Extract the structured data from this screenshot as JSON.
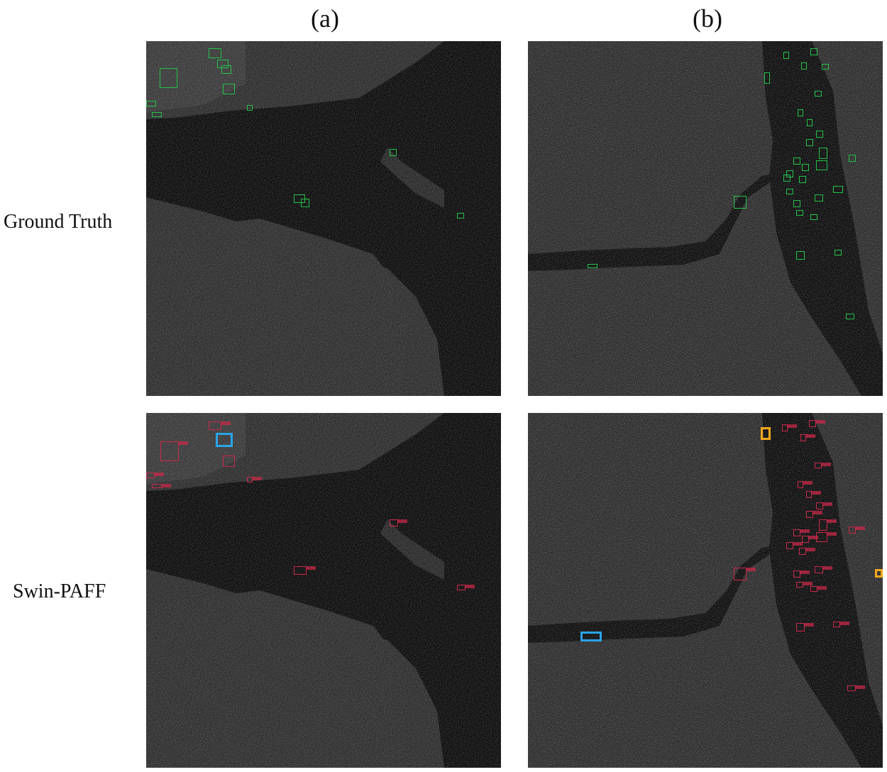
{
  "columns": {
    "a": "(a)",
    "b": "(b)"
  },
  "rows": {
    "ground_truth": "Ground Truth",
    "model": "Swin-PAFF"
  },
  "legend_colors": {
    "ground_truth_box": "#22c24a",
    "detection_box": "#c8284a",
    "missed_detection_box": "#2aa4e8",
    "false_alarm_box": "#f2a81c"
  },
  "panels": {
    "a_ground_truth": {
      "image": "SAR scene (a), harbor and bay"
    },
    "b_ground_truth": {
      "image": "SAR scene (b), river and docks"
    },
    "a_swin_paff": {
      "image": "SAR scene (a), harbor and bay"
    },
    "b_swin_paff": {
      "image": "SAR scene (b), river and docks"
    }
  }
}
